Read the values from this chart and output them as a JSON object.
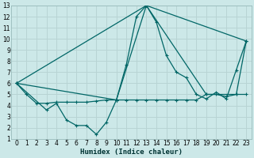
{
  "xlabel": "Humidex (Indice chaleur)",
  "xlim": [
    -0.5,
    23.5
  ],
  "ylim": [
    1,
    13
  ],
  "xticks": [
    0,
    1,
    2,
    3,
    4,
    5,
    6,
    7,
    8,
    9,
    10,
    11,
    12,
    13,
    14,
    15,
    16,
    17,
    18,
    19,
    20,
    21,
    22,
    23
  ],
  "yticks": [
    1,
    2,
    3,
    4,
    5,
    6,
    7,
    8,
    9,
    10,
    11,
    12,
    13
  ],
  "bg_color": "#cce8e8",
  "grid_color": "#b8d4d4",
  "line_color": "#006666",
  "series1": [
    [
      0,
      6
    ],
    [
      1,
      5
    ],
    [
      2,
      4.2
    ],
    [
      3,
      4.2
    ],
    [
      4,
      4.3
    ],
    [
      5,
      4.3
    ],
    [
      6,
      4.3
    ],
    [
      7,
      4.3
    ],
    [
      8,
      4.4
    ],
    [
      9,
      4.5
    ],
    [
      10,
      4.5
    ],
    [
      11,
      4.5
    ],
    [
      12,
      4.5
    ],
    [
      13,
      4.5
    ],
    [
      14,
      4.5
    ],
    [
      15,
      4.5
    ],
    [
      16,
      4.5
    ],
    [
      17,
      4.5
    ],
    [
      18,
      4.5
    ],
    [
      19,
      5.0
    ],
    [
      20,
      5.0
    ],
    [
      21,
      4.8
    ],
    [
      22,
      5.0
    ],
    [
      23,
      5.0
    ]
  ],
  "series2": [
    [
      0,
      6
    ],
    [
      3,
      3.6
    ],
    [
      4,
      4.2
    ],
    [
      5,
      2.7
    ],
    [
      6,
      2.2
    ],
    [
      7,
      2.2
    ],
    [
      8,
      1.4
    ],
    [
      9,
      2.5
    ],
    [
      10,
      4.5
    ],
    [
      11,
      7.7
    ],
    [
      12,
      12.0
    ],
    [
      13,
      13.0
    ],
    [
      14,
      11.5
    ],
    [
      15,
      8.5
    ],
    [
      16,
      7.0
    ],
    [
      17,
      6.5
    ],
    [
      18,
      5.0
    ],
    [
      19,
      4.6
    ],
    [
      20,
      5.2
    ],
    [
      21,
      4.6
    ],
    [
      22,
      7.2
    ],
    [
      23,
      9.8
    ]
  ],
  "series3": [
    [
      0,
      6
    ],
    [
      10,
      4.5
    ],
    [
      13,
      13.0
    ],
    [
      19,
      5.0
    ],
    [
      22,
      5.0
    ],
    [
      23,
      9.8
    ]
  ],
  "series4": [
    [
      0,
      6
    ],
    [
      13,
      13.0
    ],
    [
      23,
      9.8
    ]
  ]
}
